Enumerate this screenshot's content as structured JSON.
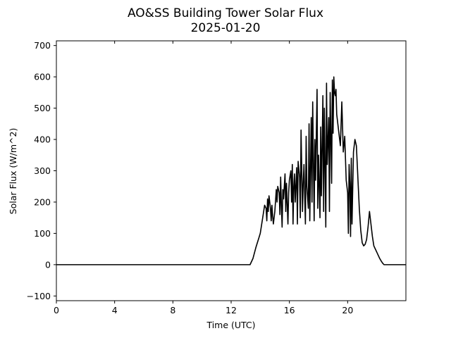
{
  "chart_data": {
    "type": "line",
    "title": "AO&SS Building Tower Solar Flux",
    "subtitle": "2025-01-20",
    "xlabel": "Time (UTC)",
    "ylabel": "Solar Flux (W/m^2)",
    "xlim": [
      0,
      24
    ],
    "ylim": [
      -115,
      715
    ],
    "x_ticks": [
      0,
      4,
      8,
      12,
      16,
      20
    ],
    "x_tick_labels": [
      "0",
      "4",
      "8",
      "12",
      "16",
      "20"
    ],
    "y_ticks": [
      -100,
      0,
      100,
      200,
      300,
      400,
      500,
      600,
      700
    ],
    "y_tick_labels": [
      "−100",
      "0",
      "100",
      "200",
      "300",
      "400",
      "500",
      "600",
      "700"
    ],
    "grid": false,
    "line_color": "#000000",
    "series": [
      {
        "x": [
          0,
          1,
          2,
          3,
          4,
          5,
          6,
          7,
          8,
          9,
          10,
          11,
          12,
          13.0,
          13.3,
          13.5,
          13.7,
          13.9,
          14.0,
          14.1,
          14.2,
          14.3,
          14.4,
          14.45,
          14.5,
          14.55,
          14.6,
          14.7,
          14.75,
          14.8,
          14.85,
          14.9,
          15.0,
          15.1,
          15.15,
          15.2,
          15.3,
          15.35,
          15.4,
          15.45,
          15.5,
          15.55,
          15.6,
          15.7,
          15.75,
          15.8,
          15.9,
          15.95,
          16.0,
          16.1,
          16.15,
          16.2,
          16.25,
          16.3,
          16.35,
          16.4,
          16.5,
          16.55,
          16.6,
          16.7,
          16.75,
          16.8,
          16.9,
          16.95,
          17.0,
          17.1,
          17.15,
          17.2,
          17.3,
          17.35,
          17.4,
          17.5,
          17.55,
          17.6,
          17.7,
          17.75,
          17.8,
          17.9,
          17.95,
          18.0,
          18.1,
          18.15,
          18.2,
          18.3,
          18.35,
          18.4,
          18.5,
          18.55,
          18.6,
          18.7,
          18.75,
          18.8,
          18.9,
          18.95,
          19.0,
          19.05,
          19.1,
          19.15,
          19.2,
          19.25,
          19.3,
          19.4,
          19.5,
          19.6,
          19.7,
          19.8,
          19.9,
          20.0,
          20.05,
          20.1,
          20.15,
          20.2,
          20.25,
          20.3,
          20.4,
          20.5,
          20.6,
          20.7,
          20.8,
          20.9,
          21.0,
          21.1,
          21.2,
          21.3,
          21.4,
          21.5,
          21.6,
          21.7,
          21.8,
          21.9,
          22.0,
          22.1,
          22.2,
          22.3,
          22.4,
          22.5,
          22.6,
          22.7,
          22.8,
          22.9,
          23.0,
          23.2,
          23.5,
          24.0
        ],
        "y": [
          0,
          0,
          0,
          0,
          0,
          0,
          0,
          0,
          0,
          0,
          0,
          0,
          0,
          0,
          0,
          20,
          55,
          85,
          100,
          130,
          160,
          190,
          180,
          140,
          210,
          170,
          220,
          180,
          140,
          190,
          155,
          130,
          170,
          240,
          200,
          250,
          230,
          160,
          280,
          190,
          120,
          240,
          210,
          290,
          170,
          260,
          130,
          230,
          270,
          300,
          200,
          320,
          130,
          250,
          290,
          200,
          310,
          130,
          330,
          280,
          150,
          430,
          170,
          260,
          320,
          130,
          410,
          250,
          180,
          450,
          140,
          470,
          200,
          520,
          140,
          400,
          270,
          560,
          180,
          350,
          150,
          440,
          220,
          540,
          170,
          500,
          120,
          580,
          320,
          470,
          170,
          550,
          260,
          590,
          420,
          600,
          550,
          540,
          560,
          480,
          460,
          420,
          380,
          520,
          360,
          410,
          270,
          230,
          100,
          320,
          260,
          90,
          340,
          130,
          360,
          400,
          380,
          280,
          180,
          110,
          70,
          60,
          65,
          80,
          120,
          170,
          130,
          90,
          60,
          50,
          40,
          30,
          20,
          12,
          5,
          0,
          0,
          0,
          0,
          0,
          0,
          0,
          0,
          0
        ]
      }
    ]
  }
}
